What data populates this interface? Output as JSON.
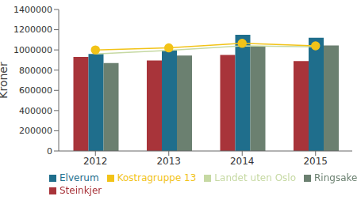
{
  "chart_data": {
    "type": "bar",
    "y_label": "Kroner",
    "categories": [
      "2012",
      "2013",
      "2014",
      "2015"
    ],
    "series": [
      {
        "name": "Steinkjer",
        "type": "bar",
        "color": "#a8343a",
        "values": [
          930000,
          895000,
          950000,
          890000
        ]
      },
      {
        "name": "Elverum",
        "type": "bar",
        "color": "#1f6e8c",
        "values": [
          960000,
          995000,
          1150000,
          1120000
        ]
      },
      {
        "name": "Ringsaker",
        "type": "bar",
        "color": "#6b8070",
        "values": [
          870000,
          945000,
          1035000,
          1045000
        ]
      },
      {
        "name": "Landet uten Oslo",
        "type": "line",
        "color": "#c6d9a3",
        "marker": "none",
        "values": [
          960000,
          995000,
          1040000,
          1030000
        ]
      },
      {
        "name": "Kostragruppe 13",
        "type": "line",
        "color": "#f2c318",
        "marker": "circle",
        "values": [
          1000000,
          1020000,
          1065000,
          1040000
        ]
      }
    ],
    "ylim": [
      0,
      1400000
    ],
    "yticks": [
      0,
      200000,
      400000,
      600000,
      800000,
      1000000,
      1200000,
      1400000
    ],
    "grid": false,
    "legend": "bottom"
  }
}
